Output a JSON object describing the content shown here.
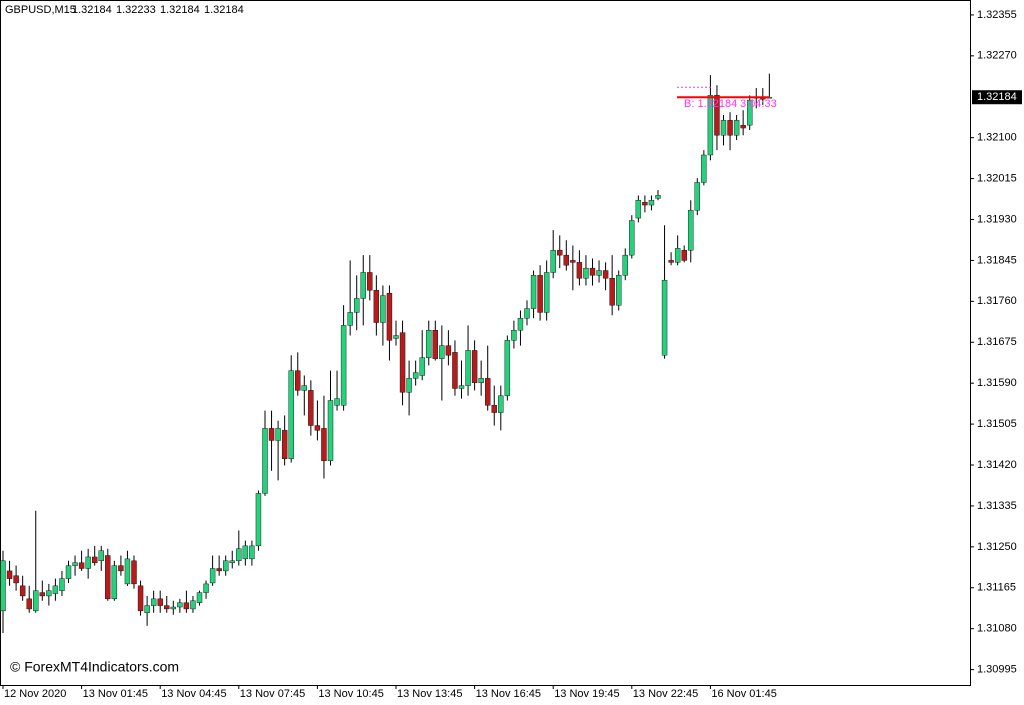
{
  "chart_data": {
    "type": "candlestick",
    "title": "GBPUSD,M15",
    "header_values": [
      "1.32184",
      "1.32233",
      "1.32184",
      "1.32184"
    ],
    "watermark": "© ForexMT4Indicators.com",
    "bid": 1.32184,
    "bid_label": "B: 1.32184",
    "countdown": "3:04:33",
    "up_color": "#26d07c",
    "down_color": "#b71c1c",
    "bid_color": "#ff0000",
    "ylim": [
      1.30963,
      1.32386
    ],
    "yticks": [
      1.30995,
      {
        "value": 1.3108,
        "label": "1.31080"
      },
      1.31165,
      {
        "value": 1.3125,
        "label": "1.31250"
      },
      1.31335,
      {
        "value": 1.3142,
        "label": "1.31420"
      },
      1.31505,
      {
        "value": 1.3159,
        "label": "1.31590"
      },
      1.31675,
      {
        "value": 1.3176,
        "label": "1.31760"
      },
      1.31845,
      {
        "value": 1.3193,
        "label": "1.31930"
      },
      1.32015,
      {
        "value": 1.321,
        "label": "1.32100"
      },
      {
        "value": 1.3227,
        "label": "1.32270"
      },
      1.32355
    ],
    "categories": [
      "12 Nov 2020",
      null,
      null,
      null,
      null,
      null,
      null,
      null,
      null,
      null,
      null,
      null,
      "13 Nov 01:45",
      null,
      null,
      null,
      null,
      null,
      null,
      null,
      null,
      null,
      null,
      null,
      "13 Nov 04:45",
      null,
      null,
      null,
      null,
      null,
      null,
      null,
      null,
      null,
      null,
      null,
      "13 Nov 07:45",
      null,
      null,
      null,
      null,
      null,
      null,
      null,
      null,
      null,
      null,
      null,
      "13 Nov 10:45",
      null,
      null,
      null,
      null,
      null,
      null,
      null,
      null,
      null,
      null,
      null,
      "13 Nov 13:45",
      null,
      null,
      null,
      null,
      null,
      null,
      null,
      null,
      null,
      null,
      null,
      "13 Nov 16:45",
      null,
      null,
      null,
      null,
      null,
      null,
      null,
      null,
      null,
      null,
      null,
      "13 Nov 19:45",
      null,
      null,
      null,
      null,
      null,
      null,
      null,
      null,
      null,
      null,
      null,
      "13 Nov 22:45",
      null,
      null,
      null,
      null,
      null,
      null,
      null,
      null,
      null,
      null,
      null,
      "16 Nov 01:45",
      null,
      null,
      null,
      null,
      null,
      null,
      null,
      null,
      null
    ],
    "ohlc": [
      [
        1.31117,
        1.31242,
        1.31071,
        1.31221
      ],
      [
        1.312,
        1.31221,
        1.31169,
        1.31184
      ],
      [
        1.3119,
        1.31211,
        1.31159,
        1.31175
      ],
      [
        1.31169,
        1.3119,
        1.31138,
        1.31148
      ],
      [
        1.31142,
        1.31169,
        1.31113,
        1.31121
      ],
      [
        1.31117,
        1.31325,
        1.31113,
        1.31159
      ],
      [
        1.31155,
        1.3118,
        1.31138,
        1.31148
      ],
      [
        1.31148,
        1.31173,
        1.31128,
        1.31159
      ],
      [
        1.31153,
        1.31184,
        1.31138,
        1.31169
      ],
      [
        1.31159,
        1.312,
        1.31148,
        1.31184
      ],
      [
        1.31184,
        1.31221,
        1.31175,
        1.31211
      ],
      [
        1.31211,
        1.31232,
        1.3119,
        1.31217
      ],
      [
        1.31217,
        1.31242,
        1.312,
        1.31205
      ],
      [
        1.31205,
        1.31246,
        1.31184,
        1.31229
      ],
      [
        1.31229,
        1.31252,
        1.31211,
        1.31217
      ],
      [
        1.31221,
        1.31252,
        1.312,
        1.31242
      ],
      [
        1.31232,
        1.31246,
        1.31138,
        1.31142
      ],
      [
        1.31142,
        1.31221,
        1.31138,
        1.31211
      ],
      [
        1.31211,
        1.31232,
        1.3119,
        1.312
      ],
      [
        1.31173,
        1.31242,
        1.31169,
        1.31225
      ],
      [
        1.31221,
        1.31232,
        1.31163,
        1.31173
      ],
      [
        1.31169,
        1.3118,
        1.31107,
        1.31117
      ],
      [
        1.31113,
        1.31148,
        1.31086,
        1.31128
      ],
      [
        1.31128,
        1.31159,
        1.31113,
        1.31142
      ],
      [
        1.31142,
        1.31159,
        1.31113,
        1.31128
      ],
      [
        1.31128,
        1.31148,
        1.31113,
        1.31121
      ],
      [
        1.31121,
        1.31138,
        1.31109,
        1.31125
      ],
      [
        1.31125,
        1.31142,
        1.31113,
        1.31134
      ],
      [
        1.31134,
        1.31159,
        1.31113,
        1.31121
      ],
      [
        1.31121,
        1.31148,
        1.31113,
        1.31138
      ],
      [
        1.31134,
        1.31159,
        1.31128,
        1.31155
      ],
      [
        1.31155,
        1.3118,
        1.31142,
        1.31173
      ],
      [
        1.31175,
        1.31232,
        1.31169,
        1.31205
      ],
      [
        1.31205,
        1.31232,
        1.3119,
        1.312
      ],
      [
        1.312,
        1.31232,
        1.3119,
        1.31221
      ],
      [
        1.31217,
        1.31242,
        1.31205,
        1.31221
      ],
      [
        1.31221,
        1.31284,
        1.31211,
        1.31246
      ],
      [
        1.31225,
        1.31263,
        1.31211,
        1.31252
      ],
      [
        1.31225,
        1.31263,
        1.31211,
        1.31252
      ],
      [
        1.31252,
        1.31367,
        1.31242,
        1.31361
      ],
      [
        1.31361,
        1.31533,
        1.31356,
        1.31496
      ],
      [
        1.31496,
        1.31533,
        1.31408,
        1.31471
      ],
      [
        1.31471,
        1.31512,
        1.31388,
        1.31496
      ],
      [
        1.31492,
        1.31523,
        1.31419,
        1.31433
      ],
      [
        1.31433,
        1.31648,
        1.31425,
        1.31616
      ],
      [
        1.31616,
        1.31654,
        1.31564,
        1.31575
      ],
      [
        1.31575,
        1.31606,
        1.31523,
        1.31585
      ],
      [
        1.31575,
        1.31596,
        1.31481,
        1.31502
      ],
      [
        1.31502,
        1.31554,
        1.31471,
        1.31492
      ],
      [
        1.31496,
        1.31564,
        1.31392,
        1.31429
      ],
      [
        1.31429,
        1.31616,
        1.31419,
        1.31554
      ],
      [
        1.31544,
        1.31616,
        1.31533,
        1.31558
      ],
      [
        1.31544,
        1.31752,
        1.31533,
        1.3171
      ],
      [
        1.3171,
        1.31845,
        1.31689,
        1.31737
      ],
      [
        1.31737,
        1.31814,
        1.317,
        1.31766
      ],
      [
        1.31766,
        1.31856,
        1.3171,
        1.3182
      ],
      [
        1.3182,
        1.31856,
        1.31762,
        1.31783
      ],
      [
        1.31783,
        1.31814,
        1.31689,
        1.31716
      ],
      [
        1.31716,
        1.31793,
        1.31668,
        1.31772
      ],
      [
        1.31777,
        1.31793,
        1.31637,
        1.31679
      ],
      [
        1.31683,
        1.3172,
        1.31668,
        1.31689
      ],
      [
        1.31695,
        1.3172,
        1.31544,
        1.31571
      ],
      [
        1.31571,
        1.31637,
        1.31523,
        1.316
      ],
      [
        1.316,
        1.31637,
        1.31585,
        1.31612
      ],
      [
        1.31606,
        1.317,
        1.31596,
        1.31643
      ],
      [
        1.31643,
        1.3172,
        1.31627,
        1.317
      ],
      [
        1.317,
        1.3172,
        1.31637,
        1.31641
      ],
      [
        1.31641,
        1.3171,
        1.31554,
        1.31668
      ],
      [
        1.31668,
        1.317,
        1.31627,
        1.31648
      ],
      [
        1.31654,
        1.31679,
        1.31564,
        1.31579
      ],
      [
        1.31579,
        1.31637,
        1.31558,
        1.31585
      ],
      [
        1.31585,
        1.3171,
        1.31564,
        1.31658
      ],
      [
        1.31658,
        1.31679,
        1.31575,
        1.31591
      ],
      [
        1.31591,
        1.31637,
        1.31564,
        1.316
      ],
      [
        1.316,
        1.31668,
        1.31533,
        1.31544
      ],
      [
        1.31544,
        1.31585,
        1.31502,
        1.31529
      ],
      [
        1.31529,
        1.31585,
        1.31492,
        1.31564
      ],
      [
        1.31564,
        1.31689,
        1.31554,
        1.31679
      ],
      [
        1.31679,
        1.3172,
        1.31662,
        1.317
      ],
      [
        1.317,
        1.31741,
        1.31668,
        1.31725
      ],
      [
        1.31725,
        1.31762,
        1.3171,
        1.31745
      ],
      [
        1.31745,
        1.31824,
        1.31725,
        1.31814
      ],
      [
        1.31814,
        1.31835,
        1.3172,
        1.31737
      ],
      [
        1.31737,
        1.31845,
        1.3172,
        1.3182
      ],
      [
        1.3182,
        1.31908,
        1.31808,
        1.31866
      ],
      [
        1.31866,
        1.31897,
        1.31829,
        1.31856
      ],
      [
        1.31856,
        1.31887,
        1.31824,
        1.31835
      ],
      [
        1.31845,
        1.31876,
        1.31783,
        1.31841
      ],
      [
        1.31841,
        1.31866,
        1.31793,
        1.31808
      ],
      [
        1.31808,
        1.31856,
        1.31793,
        1.31829
      ],
      [
        1.31829,
        1.31849,
        1.31793,
        1.31814
      ],
      [
        1.31814,
        1.31845,
        1.31799,
        1.31824
      ],
      [
        1.31824,
        1.31841,
        1.31783,
        1.31808
      ],
      [
        1.31808,
        1.31856,
        1.31731,
        1.31752
      ],
      [
        1.31752,
        1.31824,
        1.31741,
        1.31814
      ],
      [
        1.31814,
        1.3187,
        1.31804,
        1.31856
      ],
      [
        1.31856,
        1.31939,
        1.31849,
        1.31928
      ],
      [
        1.31933,
        1.3198,
        1.31924,
        1.3197
      ],
      [
        1.31966,
        1.3198,
        1.31945,
        1.3196
      ],
      [
        1.3196,
        1.3198,
        1.31949,
        1.3197
      ],
      [
        1.31974,
        1.31991,
        1.3197,
        1.3198
      ],
      [
        1.31648,
        1.31918,
        1.31641,
        1.31804
      ],
      [
        1.31845,
        1.31862,
        1.31835,
        1.31841
      ],
      [
        1.31841,
        1.31897,
        1.31835,
        1.3187
      ],
      [
        1.31866,
        1.31876,
        1.31841,
        1.31845
      ],
      [
        1.31866,
        1.3197,
        1.31841,
        1.31949
      ],
      [
        1.31949,
        1.32016,
        1.31939,
        1.32007
      ],
      [
        1.32007,
        1.32074,
        1.32001,
        1.32064
      ],
      [
        1.32064,
        1.3223,
        1.32053,
        1.32188
      ],
      [
        1.32188,
        1.32209,
        1.32074,
        1.32105
      ],
      [
        1.32105,
        1.32147,
        1.32084,
        1.32136
      ],
      [
        1.32136,
        1.32153,
        1.32074,
        1.32105
      ],
      [
        1.32105,
        1.32147,
        1.32095,
        1.32136
      ],
      [
        1.32126,
        1.32157,
        1.32105,
        1.3212
      ],
      [
        1.32126,
        1.32188,
        1.32116,
        1.32178
      ],
      [
        1.32182,
        1.32203,
        1.32161,
        1.32184
      ],
      [
        1.32184,
        1.32203,
        1.32168,
        1.3218
      ],
      [
        1.32184,
        1.32233,
        1.32184,
        1.32184
      ]
    ]
  }
}
